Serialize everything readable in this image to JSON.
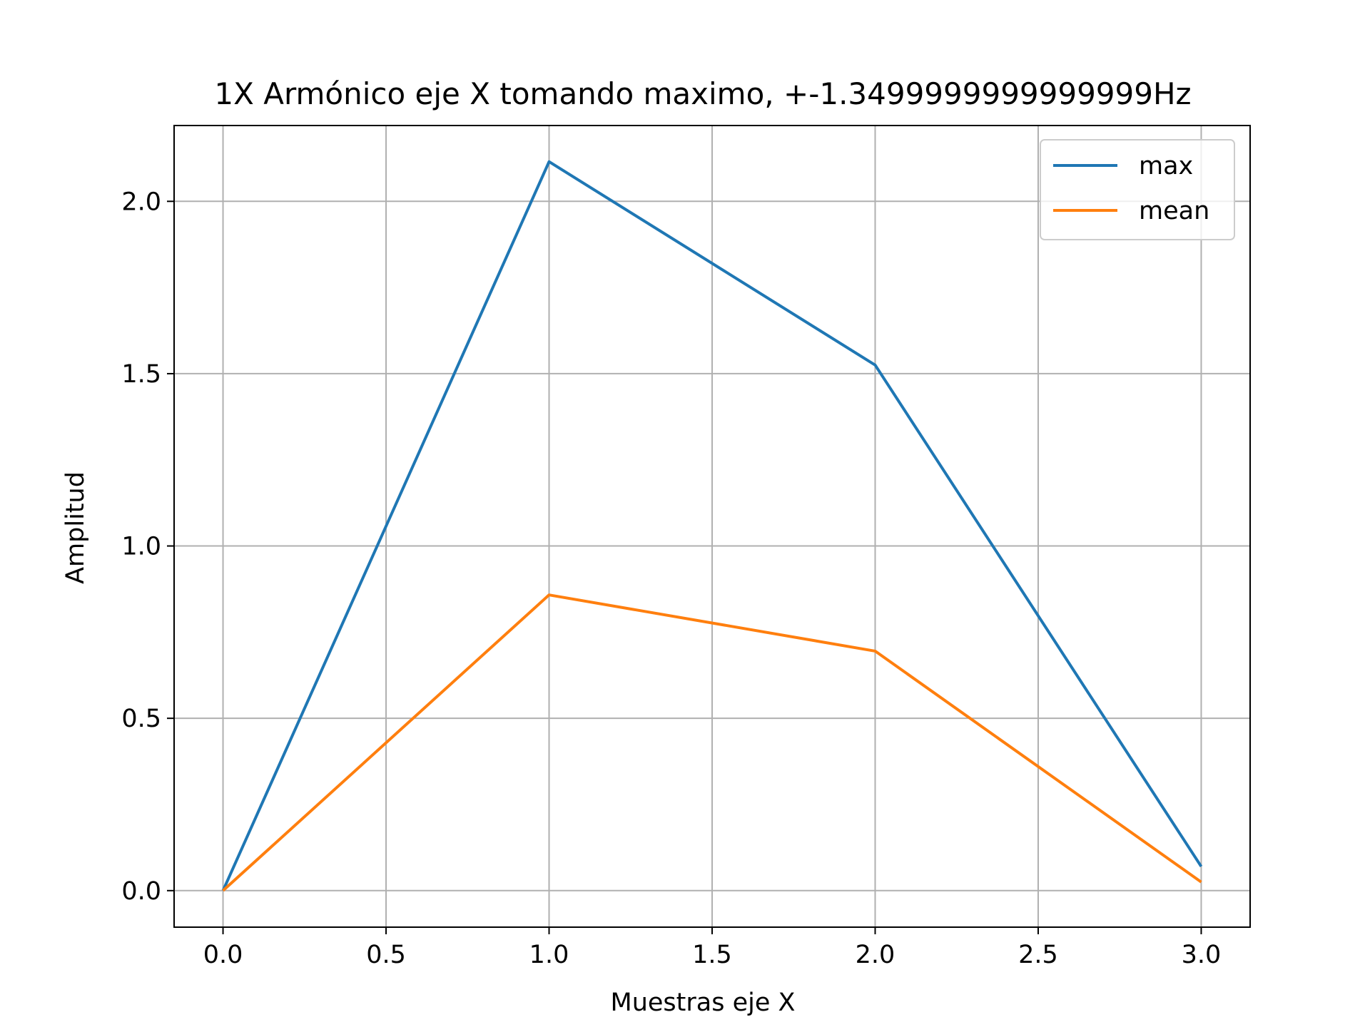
{
  "chart_data": {
    "type": "line",
    "title": "1X Armónico eje X tomando maximo, +-1.3499999999999999Hz",
    "xlabel": "Muestras eje X",
    "ylabel": "Amplitud",
    "xlim": [
      -0.15,
      3.15
    ],
    "ylim": [
      -0.106,
      2.22
    ],
    "xticks": [
      0.0,
      0.5,
      1.0,
      1.5,
      2.0,
      2.5,
      3.0
    ],
    "xtick_labels": [
      "0.0",
      "0.5",
      "1.0",
      "1.5",
      "2.0",
      "2.5",
      "3.0"
    ],
    "yticks": [
      0.0,
      0.5,
      1.0,
      1.5,
      2.0
    ],
    "ytick_labels": [
      "0.0",
      "0.5",
      "1.0",
      "1.5",
      "2.0"
    ],
    "grid": true,
    "legend_position": "top-right",
    "x": [
      0,
      1,
      2,
      3
    ],
    "series": [
      {
        "name": "max",
        "color": "#1f77b4",
        "values": [
          0.0,
          2.115,
          1.525,
          0.07
        ]
      },
      {
        "name": "mean",
        "color": "#ff7f0e",
        "values": [
          0.0,
          0.858,
          0.695,
          0.025
        ]
      }
    ]
  }
}
